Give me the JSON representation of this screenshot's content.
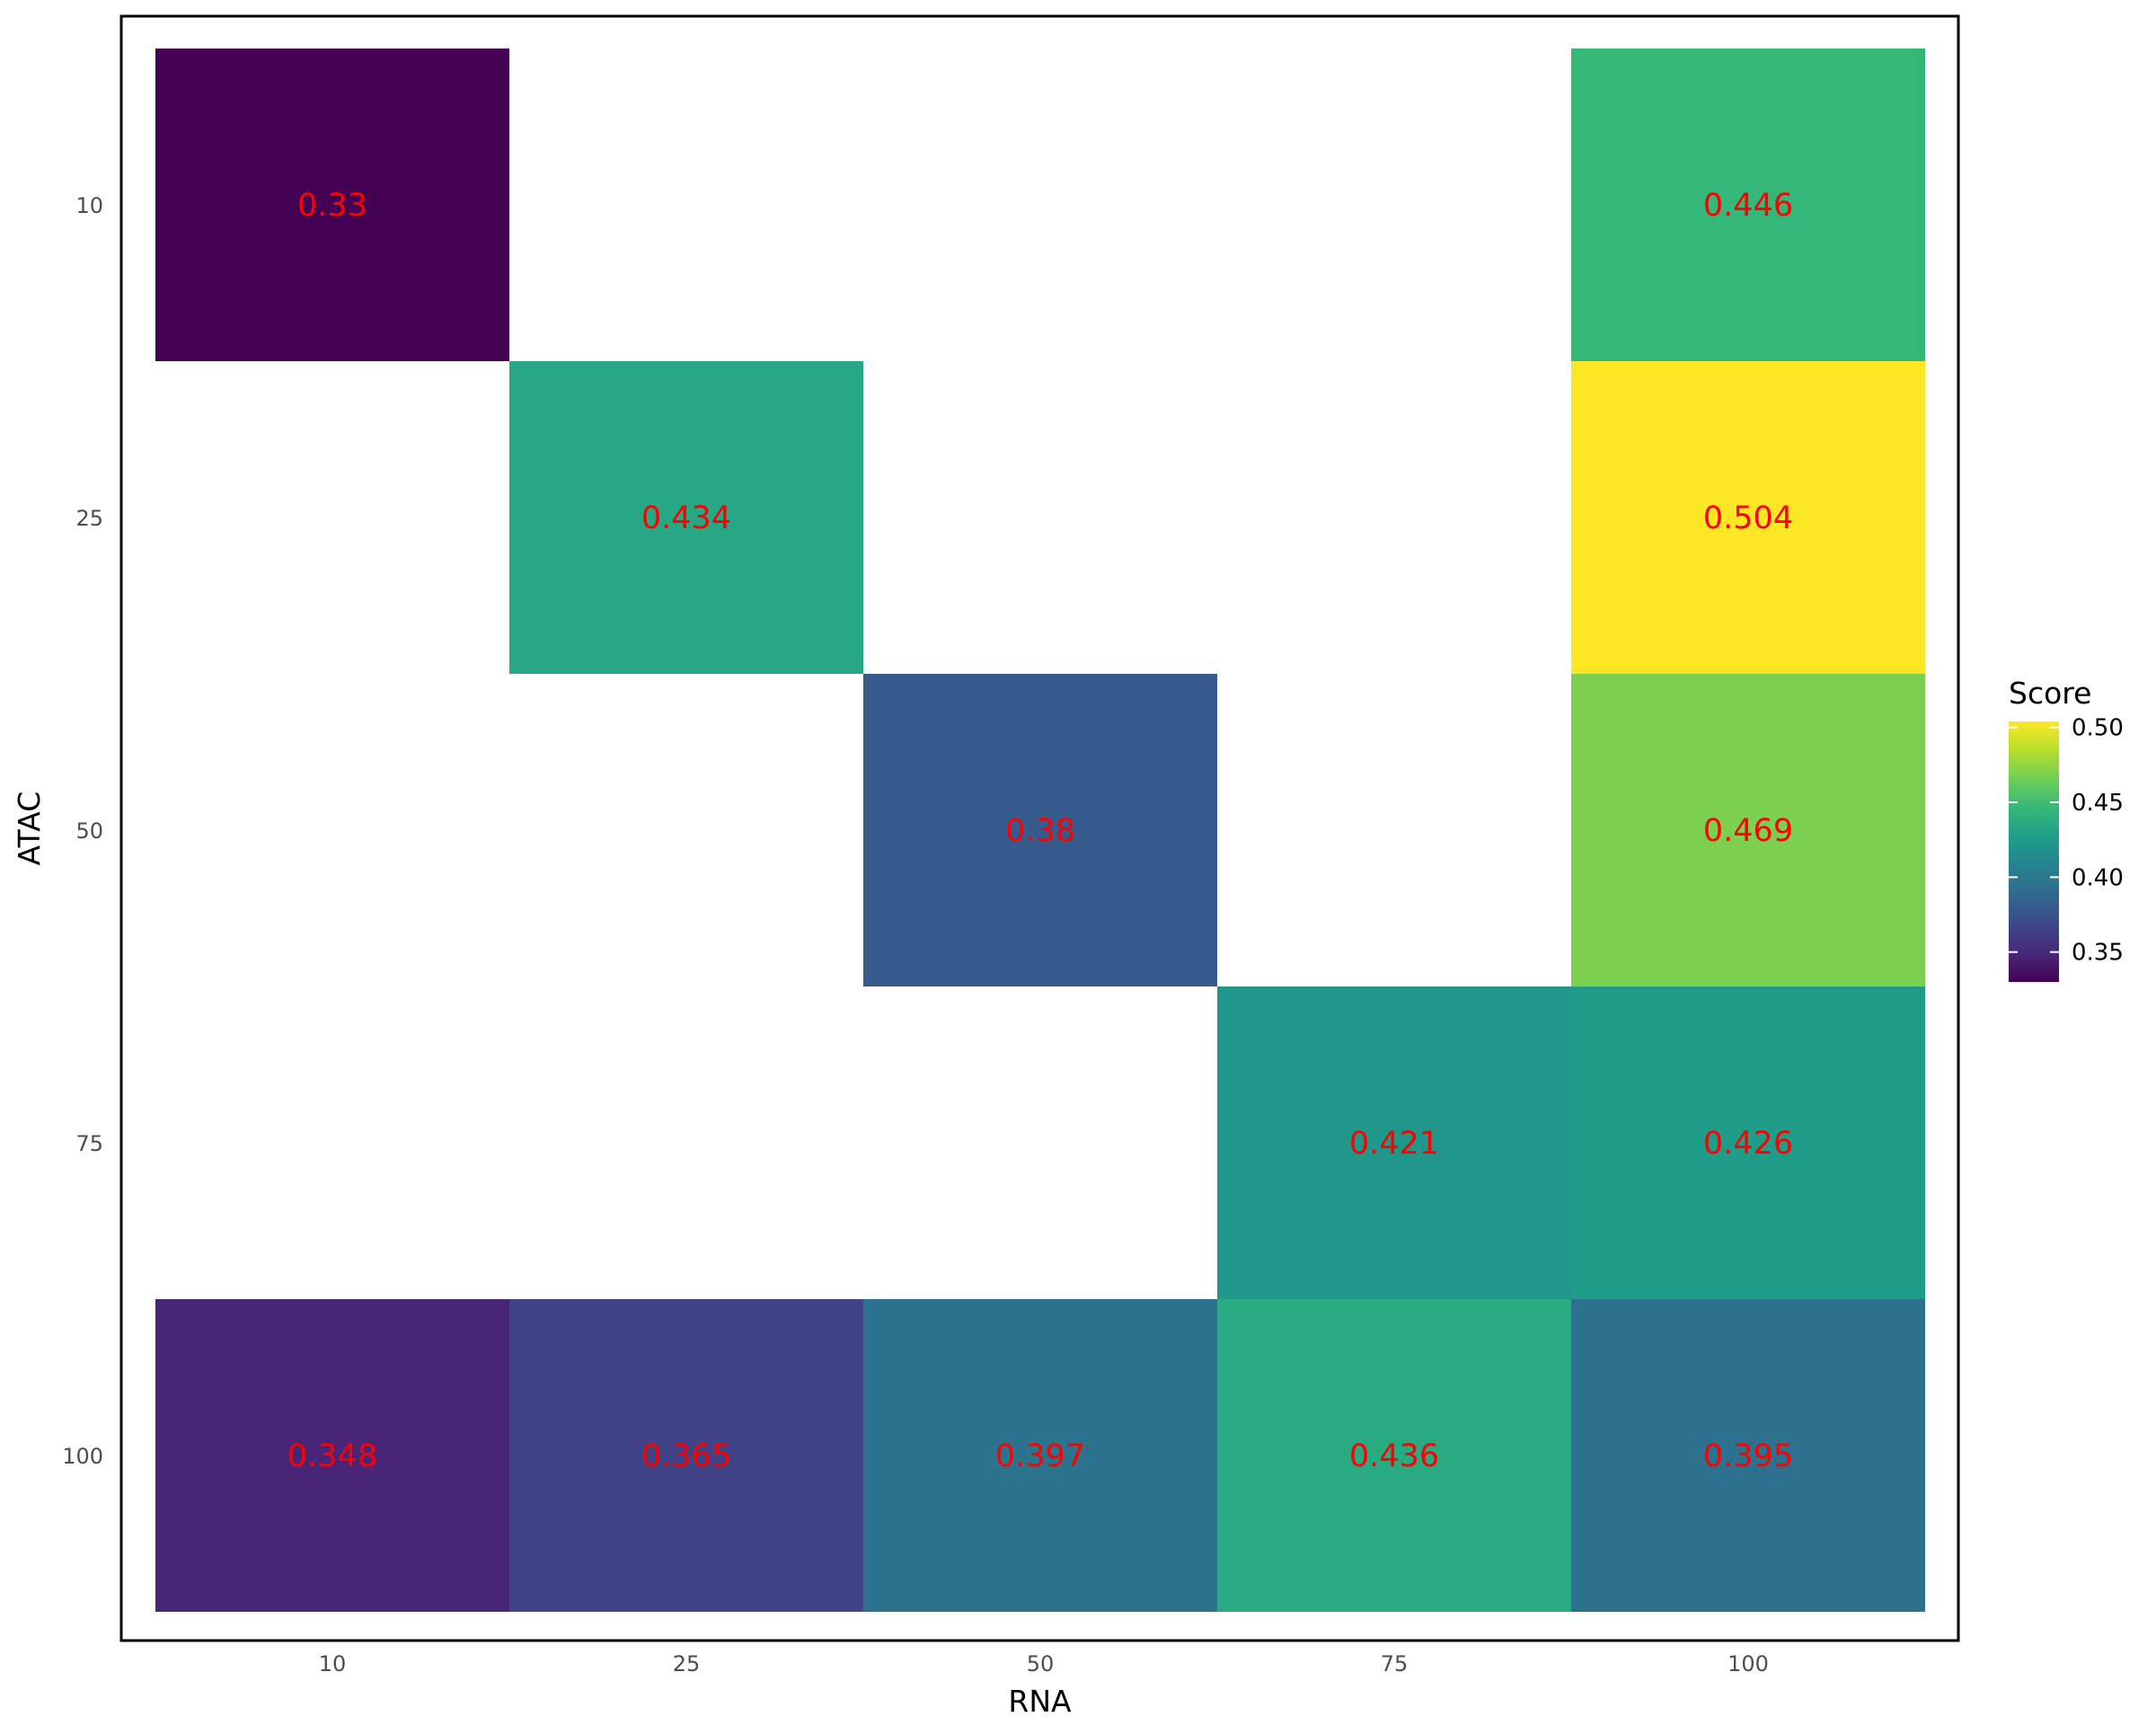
{
  "chart_data": {
    "type": "heatmap",
    "xlabel": "RNA",
    "ylabel": "ATAC",
    "x_categories": [
      "10",
      "25",
      "50",
      "75",
      "100"
    ],
    "y_categories": [
      "10",
      "25",
      "50",
      "75",
      "100"
    ],
    "cells": [
      {
        "x": "10",
        "y": "10",
        "value": 0.33,
        "label": "0.33"
      },
      {
        "x": "100",
        "y": "10",
        "value": 0.446,
        "label": "0.446"
      },
      {
        "x": "25",
        "y": "25",
        "value": 0.434,
        "label": "0.434"
      },
      {
        "x": "100",
        "y": "25",
        "value": 0.504,
        "label": "0.504"
      },
      {
        "x": "50",
        "y": "50",
        "value": 0.38,
        "label": "0.38"
      },
      {
        "x": "100",
        "y": "50",
        "value": 0.469,
        "label": "0.469"
      },
      {
        "x": "75",
        "y": "75",
        "value": 0.421,
        "label": "0.421"
      },
      {
        "x": "100",
        "y": "75",
        "value": 0.426,
        "label": "0.426"
      },
      {
        "x": "10",
        "y": "100",
        "value": 0.348,
        "label": "0.348"
      },
      {
        "x": "25",
        "y": "100",
        "value": 0.365,
        "label": "0.365"
      },
      {
        "x": "50",
        "y": "100",
        "value": 0.397,
        "label": "0.397"
      },
      {
        "x": "75",
        "y": "100",
        "value": 0.436,
        "label": "0.436"
      },
      {
        "x": "100",
        "y": "100",
        "value": 0.395,
        "label": "0.395"
      }
    ],
    "legend": {
      "title": "Score",
      "placement": "right",
      "range": [
        0.33,
        0.504
      ],
      "ticks": [
        {
          "value": 0.35,
          "label": "0.35"
        },
        {
          "value": 0.4,
          "label": "0.40"
        },
        {
          "value": 0.45,
          "label": "0.45"
        },
        {
          "value": 0.5,
          "label": "0.50"
        }
      ]
    },
    "colors": {
      "label_color": "#ff0000",
      "panel_border": "#000000",
      "colormap": "viridis"
    }
  }
}
